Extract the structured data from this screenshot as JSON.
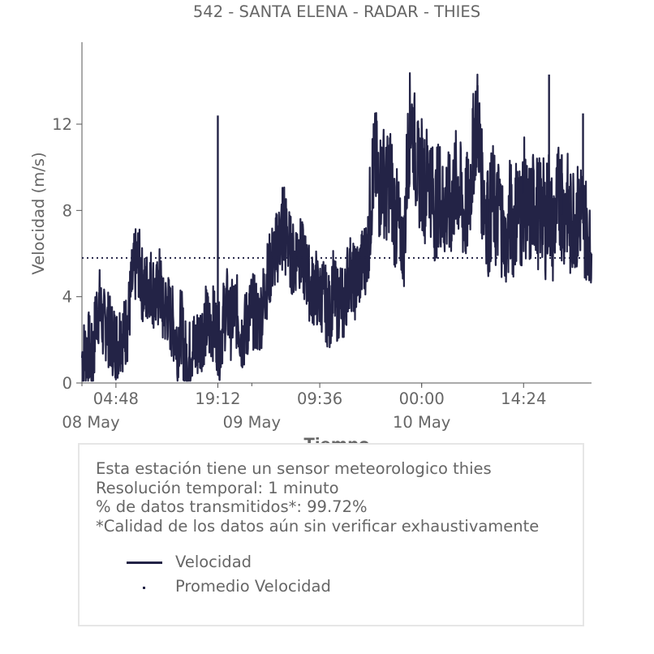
{
  "chart_data": {
    "type": "line",
    "title": "542 - SANTA ELENA - RADAR - THIES",
    "xlabel": "Tiempo",
    "ylabel": "Velocidad (m/s)",
    "ylim": [
      0,
      15.8
    ],
    "yticks": [
      "0",
      "4",
      "8",
      "12"
    ],
    "xticks": [
      {
        "label": "04:48",
        "hours_from_start": 4.8
      },
      {
        "label": "19:12",
        "hours_from_start": 19.2
      },
      {
        "label": "09:36",
        "hours_from_start": 33.6
      },
      {
        "label": "00:00",
        "hours_from_start": 48.0
      },
      {
        "label": "14:24",
        "hours_from_start": 62.4
      }
    ],
    "date_labels": [
      {
        "label": "08 May",
        "hours_from_start": 0
      },
      {
        "label": "09 May",
        "hours_from_start": 24
      },
      {
        "label": "10 May",
        "hours_from_start": 48
      }
    ],
    "xlim_hours": [
      0,
      72
    ],
    "grid": false,
    "series": [
      {
        "name": "Velocidad",
        "color": "#232346",
        "style": "solid",
        "points": [
          [
            0.0,
            1.2
          ],
          [
            0.5,
            1.4
          ],
          [
            1.0,
            1.6
          ],
          [
            1.5,
            0.8
          ],
          [
            2.0,
            3.2
          ],
          [
            2.5,
            3.6
          ],
          [
            3.0,
            2.6
          ],
          [
            3.5,
            2.8
          ],
          [
            4.0,
            2.2
          ],
          [
            4.5,
            2.0
          ],
          [
            5.0,
            1.8
          ],
          [
            5.5,
            2.4
          ],
          [
            6.0,
            2.2
          ],
          [
            6.5,
            2.8
          ],
          [
            7.0,
            4.4
          ],
          [
            7.5,
            5.4
          ],
          [
            8.0,
            5.6
          ],
          [
            8.5,
            4.6
          ],
          [
            9.0,
            4.2
          ],
          [
            9.5,
            4.8
          ],
          [
            10.0,
            4.4
          ],
          [
            10.5,
            3.8
          ],
          [
            11.0,
            4.6
          ],
          [
            11.5,
            3.2
          ],
          [
            12.0,
            3.6
          ],
          [
            12.5,
            3.0
          ],
          [
            13.0,
            2.6
          ],
          [
            13.5,
            1.8
          ],
          [
            14.0,
            2.8
          ],
          [
            14.5,
            1.4
          ],
          [
            15.0,
            0.8
          ],
          [
            15.5,
            1.8
          ],
          [
            16.0,
            1.6
          ],
          [
            16.5,
            2.0
          ],
          [
            17.0,
            2.4
          ],
          [
            17.5,
            2.8
          ],
          [
            18.0,
            2.6
          ],
          [
            18.5,
            2.8
          ],
          [
            19.0,
            2.4
          ],
          [
            19.5,
            1.8
          ],
          [
            20.0,
            3.0
          ],
          [
            20.5,
            3.6
          ],
          [
            21.0,
            2.8
          ],
          [
            21.5,
            3.4
          ],
          [
            22.0,
            3.2
          ],
          [
            22.5,
            2.2
          ],
          [
            23.0,
            2.4
          ],
          [
            23.5,
            3.0
          ],
          [
            24.0,
            3.4
          ],
          [
            24.5,
            3.2
          ],
          [
            25.0,
            2.8
          ],
          [
            25.5,
            3.6
          ],
          [
            26.0,
            4.6
          ],
          [
            26.5,
            5.2
          ],
          [
            27.0,
            5.8
          ],
          [
            27.5,
            6.2
          ],
          [
            28.0,
            6.8
          ],
          [
            28.5,
            7.4
          ],
          [
            29.0,
            6.8
          ],
          [
            29.5,
            6.0
          ],
          [
            30.0,
            5.6
          ],
          [
            30.5,
            6.4
          ],
          [
            31.0,
            5.8
          ],
          [
            31.5,
            5.4
          ],
          [
            32.0,
            4.8
          ],
          [
            32.5,
            4.2
          ],
          [
            33.0,
            4.6
          ],
          [
            33.5,
            3.8
          ],
          [
            34.0,
            4.2
          ],
          [
            34.5,
            3.6
          ],
          [
            35.0,
            3.2
          ],
          [
            35.5,
            4.4
          ],
          [
            36.0,
            3.6
          ],
          [
            36.5,
            4.0
          ],
          [
            37.0,
            3.4
          ],
          [
            37.5,
            4.8
          ],
          [
            38.0,
            5.2
          ],
          [
            38.5,
            4.6
          ],
          [
            39.0,
            5.0
          ],
          [
            39.5,
            5.4
          ],
          [
            40.0,
            5.8
          ],
          [
            40.5,
            6.6
          ],
          [
            41.0,
            9.4
          ],
          [
            41.5,
            10.2
          ],
          [
            42.0,
            9.0
          ],
          [
            42.5,
            9.8
          ],
          [
            43.0,
            8.6
          ],
          [
            43.5,
            9.8
          ],
          [
            44.0,
            8.2
          ],
          [
            44.5,
            7.4
          ],
          [
            45.0,
            6.8
          ],
          [
            45.5,
            6.2
          ],
          [
            46.0,
            10.4
          ],
          [
            46.5,
            12.6
          ],
          [
            47.0,
            11.0
          ],
          [
            47.5,
            9.6
          ],
          [
            48.0,
            9.8
          ],
          [
            48.5,
            9.0
          ],
          [
            49.0,
            10.2
          ],
          [
            49.5,
            8.6
          ],
          [
            50.0,
            8.0
          ],
          [
            50.5,
            9.2
          ],
          [
            51.0,
            7.8
          ],
          [
            51.5,
            8.4
          ],
          [
            52.0,
            8.0
          ],
          [
            52.5,
            8.8
          ],
          [
            53.0,
            9.4
          ],
          [
            53.5,
            8.6
          ],
          [
            54.0,
            7.8
          ],
          [
            54.5,
            8.2
          ],
          [
            55.0,
            9.6
          ],
          [
            55.5,
            11.8
          ],
          [
            56.0,
            12.2
          ],
          [
            56.5,
            9.2
          ],
          [
            57.0,
            8.4
          ],
          [
            57.5,
            7.2
          ],
          [
            58.0,
            8.8
          ],
          [
            58.5,
            7.6
          ],
          [
            59.0,
            8.2
          ],
          [
            59.5,
            7.0
          ],
          [
            60.0,
            6.2
          ],
          [
            60.5,
            8.0
          ],
          [
            61.0,
            7.2
          ],
          [
            61.5,
            8.4
          ],
          [
            62.0,
            7.6
          ],
          [
            62.5,
            8.8
          ],
          [
            63.0,
            7.4
          ],
          [
            63.5,
            8.0
          ],
          [
            64.0,
            8.6
          ],
          [
            64.5,
            7.8
          ],
          [
            65.0,
            8.2
          ],
          [
            65.5,
            7.4
          ],
          [
            66.0,
            8.6
          ],
          [
            66.5,
            7.0
          ],
          [
            67.0,
            8.0
          ],
          [
            67.5,
            8.8
          ],
          [
            68.0,
            7.8
          ],
          [
            68.5,
            8.4
          ],
          [
            69.0,
            7.2
          ],
          [
            69.5,
            8.0
          ],
          [
            70.0,
            7.6
          ],
          [
            70.5,
            8.2
          ],
          [
            71.0,
            7.4
          ],
          [
            71.5,
            6.8
          ],
          [
            72.0,
            6.0
          ]
        ],
        "spikes": [
          [
            19.2,
            12.4
          ],
          [
            46.6,
            12.2
          ],
          [
            55.9,
            13.8
          ],
          [
            57.3,
            9.8
          ],
          [
            62.3,
            10.2
          ],
          [
            66.0,
            14.3
          ],
          [
            67.8,
            10.6
          ],
          [
            70.8,
            12.5
          ]
        ]
      },
      {
        "name": "Promedio Velocidad",
        "color": "#232346",
        "style": "dotted",
        "value": 5.8
      }
    ],
    "legend_position": "bottom-box"
  },
  "info": {
    "line1": "Esta estación tiene un sensor meteorologico thies",
    "line2": "Resolución temporal: 1 minuto",
    "line3": "% de datos transmitidos*: 99.72%",
    "line4": "*Calidad de los datos aún sin verificar exhaustivamente"
  },
  "legend": {
    "item1": "Velocidad",
    "item2": "Promedio Velocidad"
  }
}
